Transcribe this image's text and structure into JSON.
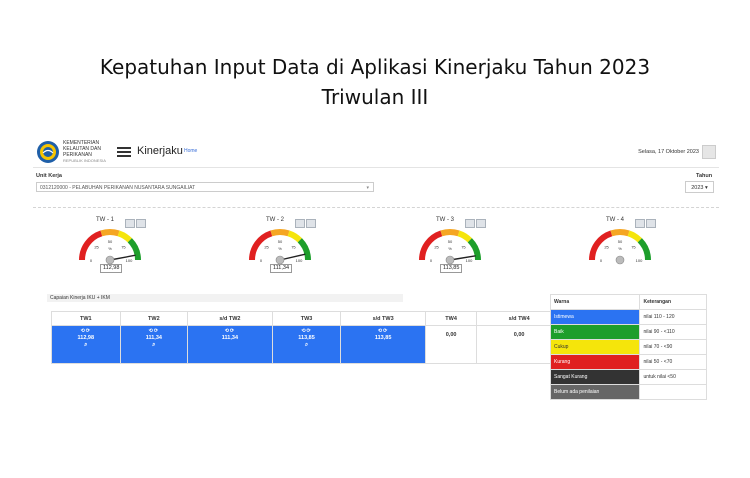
{
  "slide": {
    "title_line1": "Kepatuhan Input Data di Aplikasi Kinerjaku Tahun 2023",
    "title_line2": "Triwulan III"
  },
  "header": {
    "logo_line1": "KEMENTERIAN",
    "logo_line2": "KELAUTAN DAN",
    "logo_line3": "PERIKANAN",
    "logo_line4": "REPUBLIK INDONESIA",
    "app_name": "Kinerjaku",
    "home_link": "Home",
    "date": "Selasa, 17 Oktober 2023",
    "icons": {
      "menu": "hamburger-icon",
      "user": "user-icon"
    }
  },
  "filters": {
    "unit_label": "Unit Kerja",
    "unit_value": "0312120000 - PELABUHAN PERIKANAN NUSANTARA SUNGAILIAT",
    "year_label": "Tahun",
    "year_value": "2023"
  },
  "gauges": [
    {
      "title": "TW - 1",
      "value": "112,98",
      "pct": 112.98
    },
    {
      "title": "TW - 2",
      "value": "111,34",
      "pct": 111.34
    },
    {
      "title": "TW - 3",
      "value": "113,85",
      "pct": 113.85
    },
    {
      "title": "TW - 4",
      "value": "",
      "pct": 0
    }
  ],
  "gauge_scale": {
    "t0": "0",
    "t25": "25",
    "t50": "50",
    "t75": "75",
    "t100": "100",
    "unit": "%"
  },
  "colors": {
    "red": "#e02020",
    "orange": "#f5a623",
    "yellow": "#f5e50b",
    "green": "#1d9e2b",
    "blue": "#2b73f2",
    "dark": "#333333",
    "gray": "#666666"
  },
  "performance": {
    "title": "Capaian Kinerja IKU + IKM",
    "headers": [
      "TW1",
      "TW2",
      "s/d TW2",
      "TW3",
      "s/d TW3",
      "TW4",
      "s/d TW4"
    ],
    "icons_text": "⟲⟳",
    "cells": [
      {
        "value": "112,98",
        "search": true,
        "style": "blue"
      },
      {
        "value": "111,34",
        "search": true,
        "style": "blue"
      },
      {
        "value": "111,34",
        "search": false,
        "style": "blue"
      },
      {
        "value": "113,85",
        "search": true,
        "style": "blue"
      },
      {
        "value": "113,85",
        "search": false,
        "style": "blue"
      },
      {
        "value": "0,00",
        "search": false,
        "style": "white"
      },
      {
        "value": "0,00",
        "search": false,
        "style": "white"
      }
    ]
  },
  "legend": {
    "header_color": "Warna",
    "header_note": "Keterangan",
    "rows": [
      {
        "label": "Istimewa",
        "note": "nilai 110 - 120",
        "bg": "#2b73f2",
        "fg": "#ffffff"
      },
      {
        "label": "Baik",
        "note": "nilai 90 - <110",
        "bg": "#1d9e2b",
        "fg": "#ffffff"
      },
      {
        "label": "Cukup",
        "note": "nilai 70 - <90",
        "bg": "#f5e50b",
        "fg": "#333333"
      },
      {
        "label": "Kurang",
        "note": "nilai 50 - <70",
        "bg": "#e02020",
        "fg": "#ffffff"
      },
      {
        "label": "Sangat Kurang",
        "note": "untuk nilai <50",
        "bg": "#333333",
        "fg": "#ffffff"
      },
      {
        "label": "Belum ada penilaian",
        "note": "",
        "bg": "#666666",
        "fg": "#ffffff"
      }
    ]
  }
}
